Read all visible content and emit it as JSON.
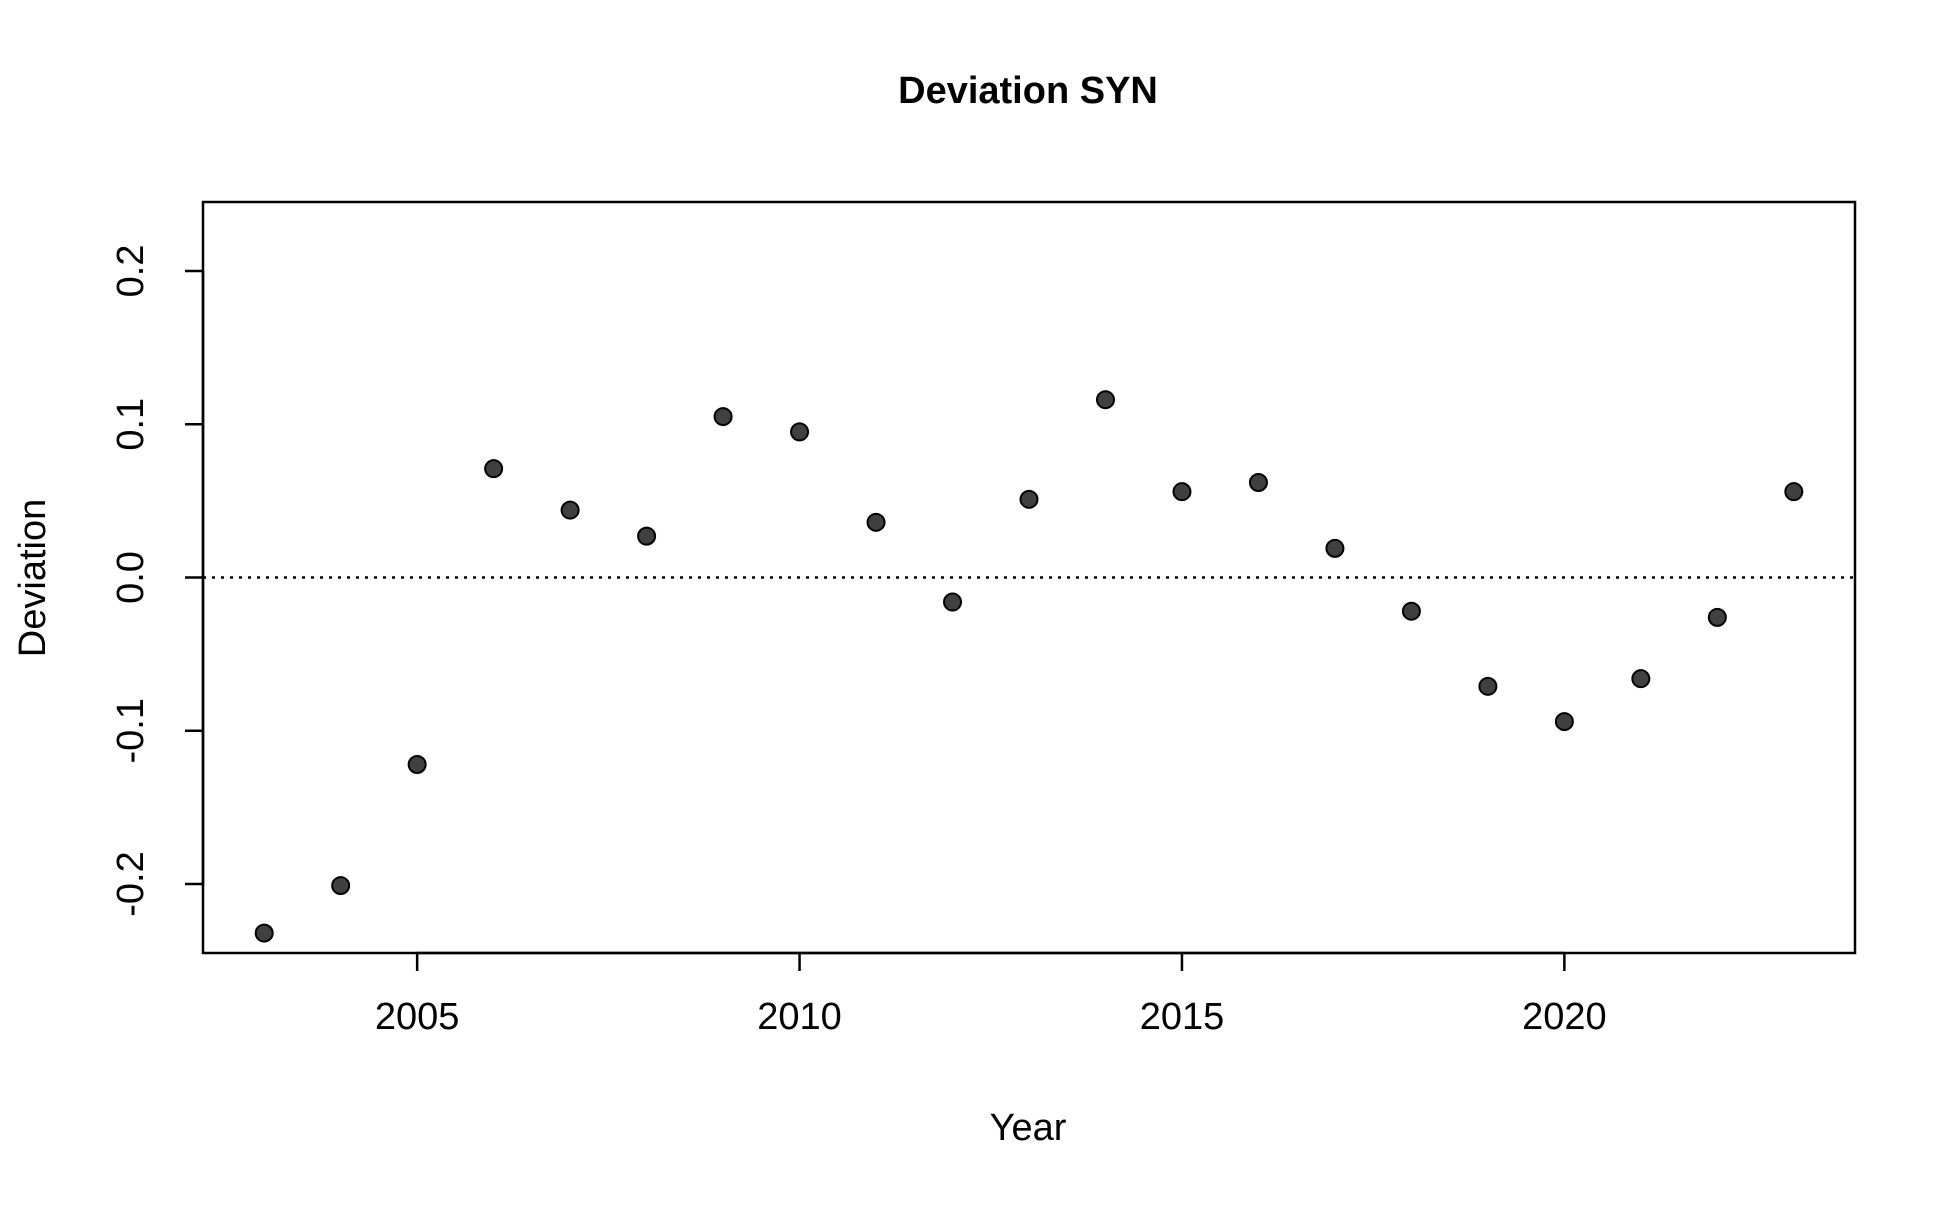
{
  "chart_data": {
    "type": "scatter",
    "title": "Deviation SYN",
    "xlabel": "Year",
    "ylabel": "Deviation",
    "xlim": [
      2002.2,
      2023.8
    ],
    "ylim": [
      -0.245,
      0.245
    ],
    "xticks": [
      2005,
      2010,
      2015,
      2020
    ],
    "xtick_labels": [
      "2005",
      "2010",
      "2015",
      "2020"
    ],
    "yticks": [
      -0.2,
      -0.1,
      0.0,
      0.1,
      0.2
    ],
    "ytick_labels": [
      "-0.2",
      "-0.1",
      "0.0",
      "0.1",
      "0.2"
    ],
    "reference_line": {
      "y": 0.0,
      "style": "dotted"
    },
    "grid": false,
    "legend": "none",
    "point_color": "#404040",
    "x": [
      2003,
      2004,
      2005,
      2006,
      2007,
      2008,
      2009,
      2010,
      2011,
      2012,
      2013,
      2014,
      2015,
      2016,
      2017,
      2018,
      2019,
      2020,
      2021,
      2022,
      2023
    ],
    "y": [
      -0.232,
      -0.201,
      -0.122,
      0.071,
      0.044,
      0.027,
      0.105,
      0.095,
      0.036,
      -0.016,
      0.051,
      0.116,
      0.056,
      0.062,
      0.019,
      -0.022,
      -0.071,
      -0.094,
      -0.066,
      -0.026,
      0.056
    ]
  }
}
